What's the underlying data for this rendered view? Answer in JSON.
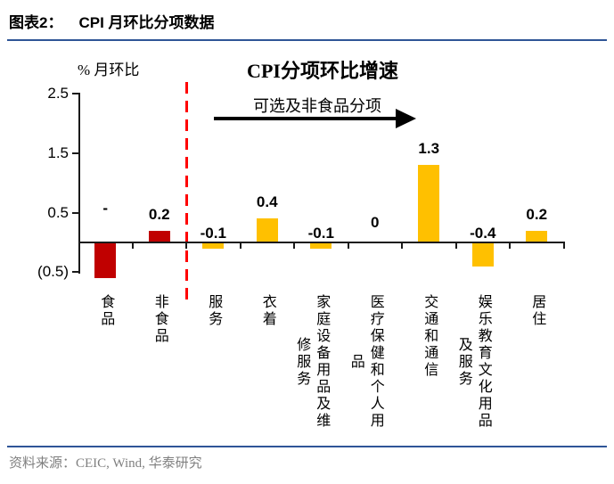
{
  "header": {
    "figure_label": "图表2：",
    "figure_title": "CPI 月环比分项数据"
  },
  "chart_data": {
    "type": "bar",
    "title": "CPI分项环比增速",
    "unit_label": "% 月环比",
    "group_annotation": "可选及非食品分项",
    "categories": [
      "食品",
      "非食品",
      "服务",
      "衣着",
      "家庭设备用品及维修服务",
      "医疗保健和个人用品",
      "交通和通信",
      "娱乐教育文化用品及服务",
      "居住"
    ],
    "values": [
      -0.6,
      0.2,
      -0.1,
      0.4,
      -0.1,
      0,
      1.3,
      -0.4,
      0.2
    ],
    "bar_labels": [
      "-",
      "0.2",
      "-0.1",
      "0.4",
      "-0.1",
      "0",
      "1.3",
      "-0.4",
      "0.2"
    ],
    "category_lines": [
      [
        "食品"
      ],
      [
        "非食品"
      ],
      [
        "服务"
      ],
      [
        "衣着"
      ],
      [
        "家庭设备用品及维",
        "修服务"
      ],
      [
        "医疗保健和个人用",
        "品"
      ],
      [
        "交通和通信"
      ],
      [
        "娱乐教育文化用品",
        "及服务"
      ],
      [
        "居住"
      ]
    ],
    "bar_colors": [
      "#C00000",
      "#C00000",
      "#FFC000",
      "#FFC000",
      "#FFC000",
      "#FFC000",
      "#FFC000",
      "#FFC000",
      "#FFC000"
    ],
    "separator_after_index": 1,
    "y_ticks": [
      {
        "label": "2.5",
        "value": 2.5
      },
      {
        "label": "1.5",
        "value": 1.5
      },
      {
        "label": "0.5",
        "value": 0.5
      },
      {
        "label": "(0.5)",
        "value": -0.5
      }
    ],
    "ylim": [
      -0.5,
      2.5
    ],
    "xlabel": "",
    "ylabel": "% 月环比",
    "grid": false,
    "legend": false,
    "accent_colors": {
      "food_bar": "#C00000",
      "nonfood_bar": "#FFC000",
      "separator_line": "#FF0000",
      "rule_line": "#2F5597",
      "source_text": "#808080"
    }
  },
  "footer": {
    "source": "资料来源：CEIC, Wind,  华泰研究"
  }
}
